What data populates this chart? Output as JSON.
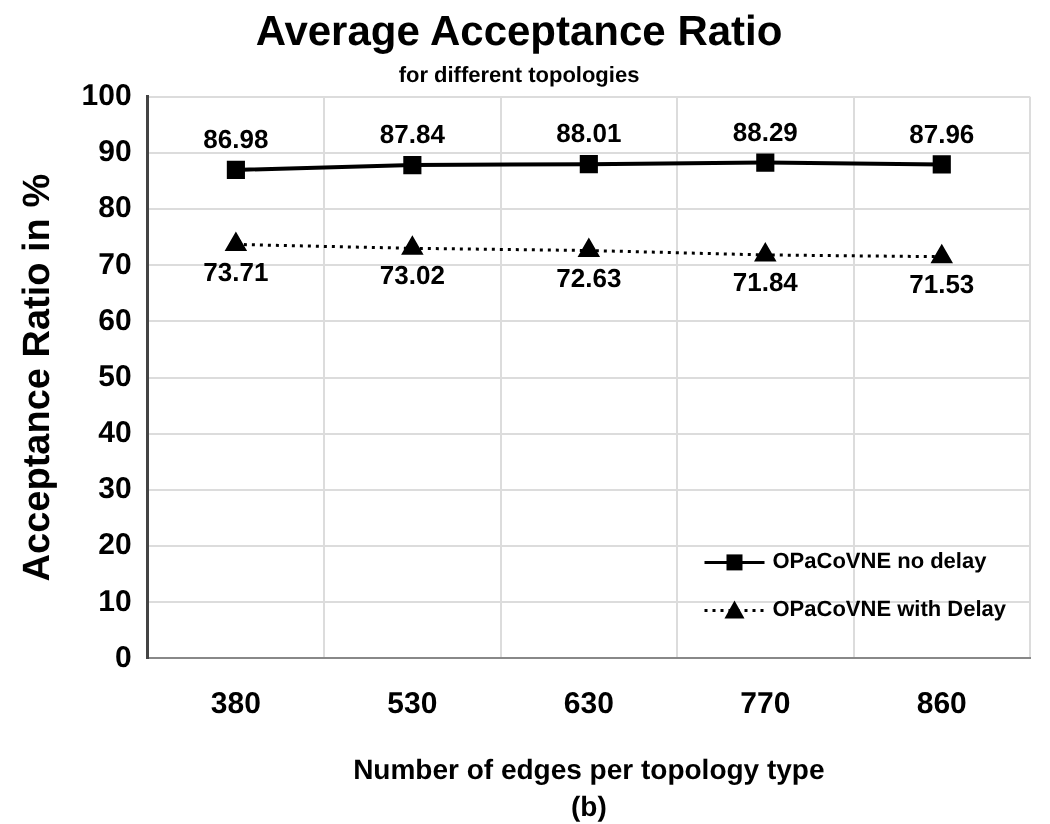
{
  "chart_data": {
    "type": "line",
    "title": "Average Acceptance Ratio",
    "subtitle": "for different topologies",
    "xlabel": "Number of edges per topology type",
    "ylabel": "Acceptance Ratio in %",
    "categories": [
      "380",
      "530",
      "630",
      "770",
      "860"
    ],
    "series": [
      {
        "name": "OPaCoVNE no delay",
        "color": "#000000",
        "marker": "square",
        "line_style": "solid",
        "values": [
          86.98,
          87.84,
          88.01,
          88.29,
          87.96
        ]
      },
      {
        "name": "OPaCoVNE with Delay",
        "color": "#000000",
        "marker": "triangle",
        "line_style": "dotted",
        "values": [
          73.71,
          73.02,
          72.63,
          71.84,
          71.53
        ]
      }
    ],
    "ylim": [
      0,
      100
    ],
    "yticks": [
      0,
      10,
      20,
      30,
      40,
      50,
      60,
      70,
      80,
      90,
      100
    ],
    "grid": true,
    "legend": "bottom right",
    "data_labels": true,
    "annotations": [
      "(b)"
    ]
  }
}
